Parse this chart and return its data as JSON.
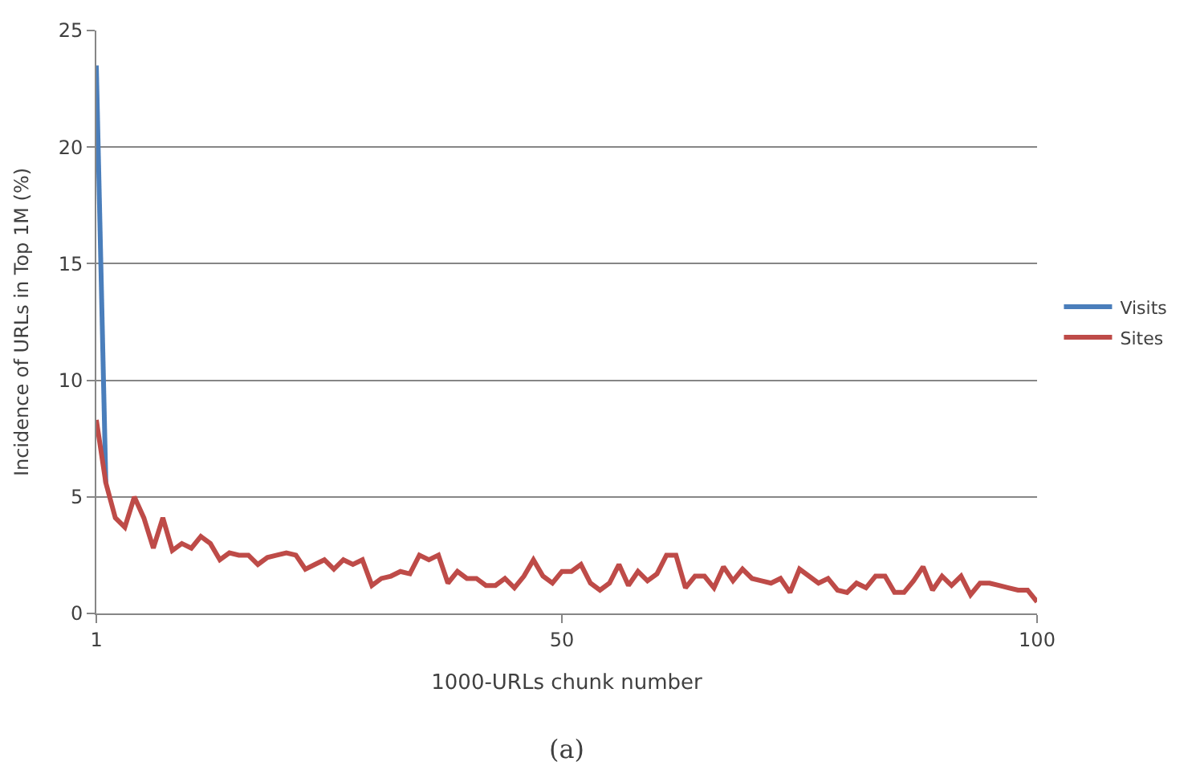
{
  "chart_data": {
    "type": "line",
    "xlabel": "1000-URLs chunk number",
    "ylabel": "Incidence of URLs in Top 1M (%)",
    "xlim": [
      1,
      100
    ],
    "xticks": [
      1,
      50,
      100
    ],
    "ylim": [
      0,
      25
    ],
    "yticks": [
      0,
      5,
      10,
      15,
      20,
      25
    ],
    "grid": "y",
    "legend": "right",
    "marker": "none",
    "line_style": "solid",
    "series": [
      {
        "name": "Visits",
        "color": "#4a7ebb",
        "x": [
          1,
          2
        ],
        "values": [
          23.5,
          5.6
        ]
      },
      {
        "name": "Sites",
        "color": "#be4b48",
        "x": [
          1,
          2,
          3,
          4,
          5,
          6,
          7,
          8,
          9,
          10,
          11,
          12,
          13,
          14,
          15,
          16,
          17,
          18,
          19,
          20,
          21,
          22,
          23,
          24,
          25,
          26,
          27,
          28,
          29,
          30,
          31,
          32,
          33,
          34,
          35,
          36,
          37,
          38,
          39,
          40,
          41,
          42,
          43,
          44,
          45,
          46,
          47,
          48,
          49,
          50,
          51,
          52,
          53,
          54,
          55,
          56,
          57,
          58,
          59,
          60,
          61,
          62,
          63,
          64,
          65,
          66,
          67,
          68,
          69,
          70,
          71,
          72,
          73,
          74,
          75,
          76,
          77,
          78,
          79,
          80,
          81,
          82,
          83,
          84,
          85,
          86,
          87,
          88,
          89,
          90,
          91,
          92,
          93,
          94,
          95,
          96,
          97,
          98,
          99,
          100
        ],
        "values": [
          8.3,
          5.6,
          4.1,
          3.7,
          5.0,
          4.1,
          2.8,
          4.1,
          2.7,
          3.0,
          2.8,
          3.3,
          3.0,
          2.3,
          2.6,
          2.5,
          2.5,
          2.1,
          2.4,
          2.5,
          2.6,
          2.5,
          1.9,
          2.1,
          2.3,
          1.9,
          2.3,
          2.1,
          2.3,
          1.2,
          1.5,
          1.6,
          1.8,
          1.7,
          2.5,
          2.3,
          2.5,
          1.3,
          1.8,
          1.5,
          1.5,
          1.2,
          1.2,
          1.5,
          1.1,
          1.6,
          2.3,
          1.6,
          1.3,
          1.8,
          1.8,
          2.1,
          1.3,
          1.0,
          1.3,
          2.1,
          1.2,
          1.8,
          1.4,
          1.7,
          2.5,
          2.5,
          1.1,
          1.6,
          1.6,
          1.1,
          2.0,
          1.4,
          1.9,
          1.5,
          1.4,
          1.3,
          1.5,
          0.9,
          1.9,
          1.6,
          1.3,
          1.5,
          1.0,
          0.9,
          1.3,
          1.1,
          1.6,
          1.6,
          0.9,
          0.9,
          1.4,
          2.0,
          1.0,
          1.6,
          1.2,
          1.6,
          0.8,
          1.3,
          1.3,
          1.2,
          1.1,
          1.0,
          1.0,
          0.5
        ]
      }
    ],
    "annotations": [
      "(a)"
    ]
  }
}
